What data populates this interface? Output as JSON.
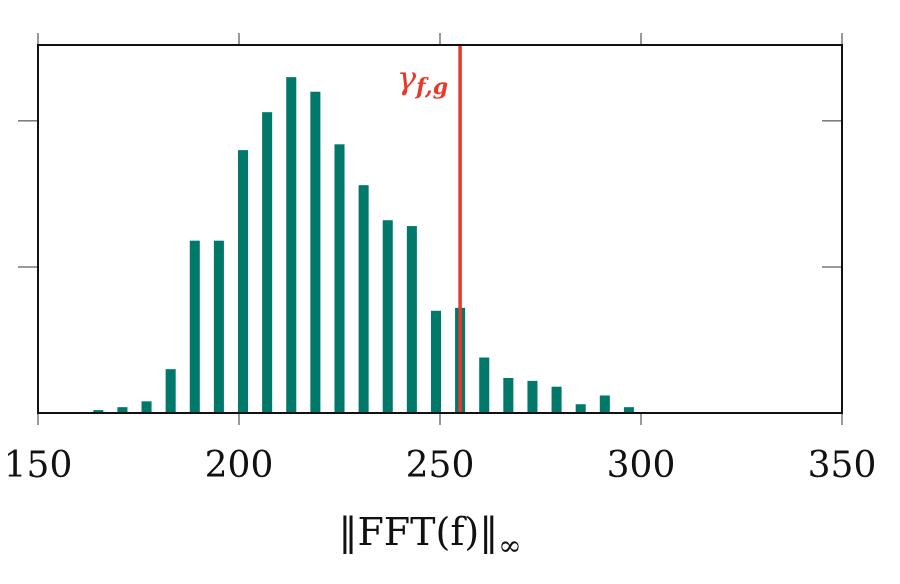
{
  "chart_data": {
    "type": "bar",
    "x": [
      165,
      171,
      177,
      183,
      189,
      195,
      201,
      207,
      213,
      219,
      225,
      231,
      237,
      243,
      249,
      255,
      261,
      267,
      273,
      279,
      285,
      291,
      297
    ],
    "values": [
      1,
      2,
      4,
      15,
      59,
      59,
      90,
      103,
      115,
      110,
      92,
      78,
      66,
      64,
      35,
      36,
      19,
      12,
      11,
      9,
      3,
      6,
      2
    ],
    "bar_width": 2.5,
    "color": "#00796b",
    "xlim": [
      150,
      350
    ],
    "xticks": [
      150,
      200,
      250,
      300,
      350
    ],
    "ylim": [
      0,
      126
    ],
    "yticks": [
      50,
      100
    ],
    "xlabel": "‖FFT(f)‖",
    "xlabel_sub": "∞",
    "threshold": {
      "value": 255,
      "label": "γ",
      "label_sub": "f,g",
      "color": "#e8382a"
    }
  }
}
